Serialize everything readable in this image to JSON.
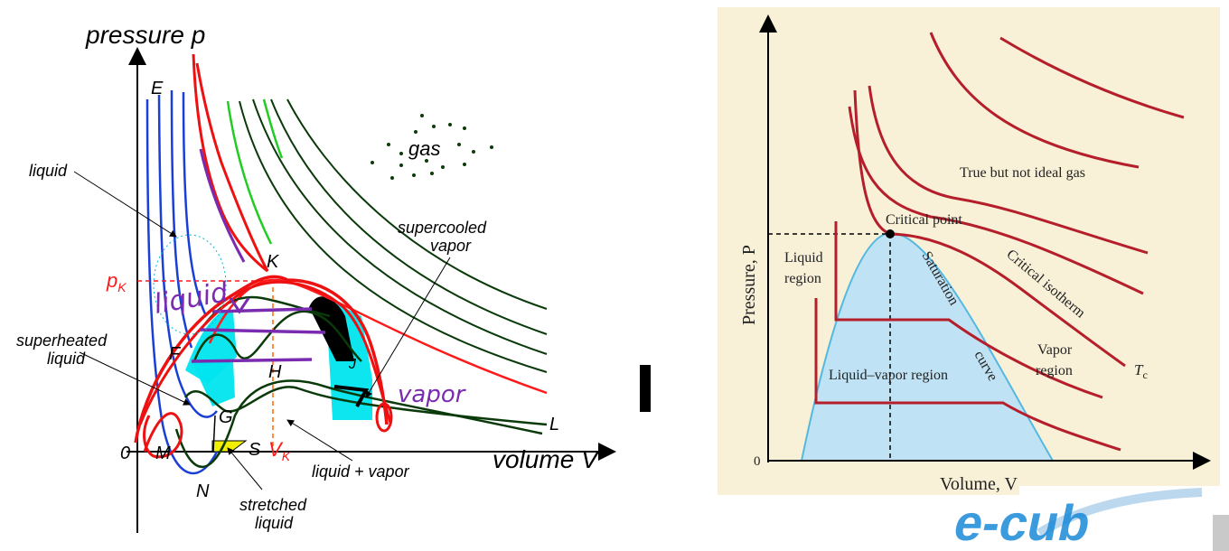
{
  "left_diagram": {
    "y_axis_label": "pressure p",
    "x_axis_label": "volume V",
    "origin_label": "0",
    "point_labels": {
      "E": "E",
      "K": "K",
      "F": "F",
      "H": "H",
      "G": "G",
      "M": "M",
      "S": "S",
      "N": "N",
      "L": "L",
      "J": "J"
    },
    "pk_label": "p",
    "pk_sub": "K",
    "vk_label": "V",
    "vk_sub": "K",
    "region_labels": {
      "liquid": "liquid",
      "superheated_1": "superheated",
      "superheated_2": "liquid",
      "supercooled_1": "supercooled",
      "supercooled_2": "vapor",
      "liquid_vapor": "liquid + vapor",
      "stretched_1": "stretched",
      "stretched_2": "liquid",
      "gas": "gas"
    },
    "colors": {
      "liquid_isotherm": "#1a3fd6",
      "gas_isotherm": "#0a3a0a",
      "hot_isotherm": "#22cc22",
      "critical": "#ff1a1a",
      "metastable_fill": "#00e5ee",
      "stretched_fill": "#f2ee00",
      "annotation": "#7a2bb0"
    },
    "handwritten": {
      "liquid": "liquid",
      "vapor": "vapor"
    }
  },
  "right_diagram": {
    "y_axis_label": "Pressure, P",
    "x_axis_label": "Volume, V",
    "origin_label": "0",
    "labels": {
      "ideal_gas": "True but not ideal gas",
      "critical_point": "Critical point",
      "liquid_region_1": "Liquid",
      "liquid_region_2": "region",
      "saturation": "Saturation",
      "curve": "curve",
      "critical_isotherm": "Critical isotherm",
      "vapor_region_1": "Vapor",
      "vapor_region_2": "region",
      "liquid_vapor": "Liquid–vapor region",
      "tc": "T",
      "tc_sub": "c"
    },
    "colors": {
      "background": "#f8f1d8",
      "isotherm": "#b51e2b",
      "dome_fill": "#bfe3f5",
      "dome_edge": "#55b8e0"
    }
  },
  "logo": {
    "text": "e-cub",
    "color": "#1a8ad8"
  }
}
